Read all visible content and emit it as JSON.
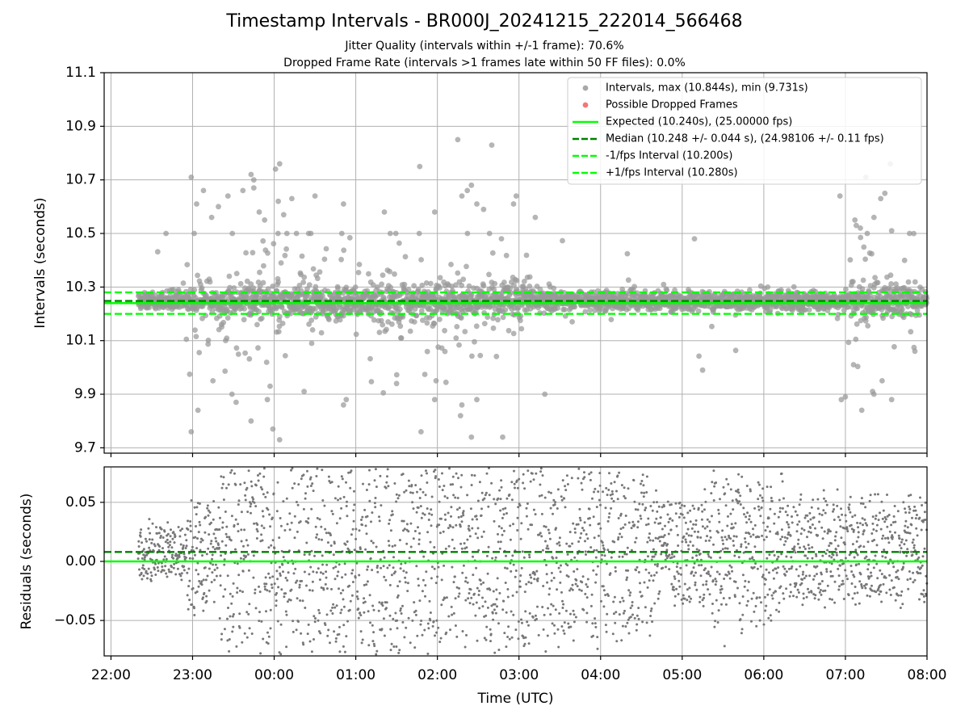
{
  "title": "Timestamp Intervals - BR000J_20241215_222014_566468",
  "subtitle_lines": [
    "Jitter Quality (intervals within +/-1 frame): 70.6%",
    "Dropped Frame Rate (intervals >1 frames late within 50 FF files): 0.0%"
  ],
  "chart_data": [
    {
      "type": "scatter",
      "panel": "intervals",
      "ylabel": "Intervals (seconds)",
      "ylim": [
        9.68,
        11.1
      ],
      "yticks": [
        "9.7",
        "9.9",
        "10.1",
        "10.3",
        "10.5",
        "10.7",
        "10.9",
        "11.1"
      ],
      "ytick_values": [
        9.7,
        9.9,
        10.1,
        10.3,
        10.5,
        10.7,
        10.9,
        11.1
      ],
      "grid": true,
      "legend_position": "top-right",
      "series": [
        {
          "name": "Intervals, max (10.844s), min (9.731s)",
          "kind": "scatter",
          "color": "#999999",
          "max": 10.844,
          "min": 9.731,
          "center": 10.248
        },
        {
          "name": "Possible Dropped Frames",
          "kind": "scatter",
          "color": "#f06060",
          "points": []
        },
        {
          "name": "Expected (10.240s), (25.00000 fps)",
          "kind": "hline",
          "y": 10.24,
          "color": "#00ff00",
          "style": "solid"
        },
        {
          "name": "Median (10.248 +/- 0.044 s), (24.98106 +/- 0.11 fps)",
          "kind": "hline",
          "y": 10.248,
          "color": "#008000",
          "style": "dashed"
        },
        {
          "name": "-1/fps Interval (10.200s)",
          "kind": "hline",
          "y": 10.2,
          "color": "#00ff00",
          "style": "dashed"
        },
        {
          "name": "+1/fps Interval (10.280s)",
          "kind": "hline",
          "y": 10.28,
          "color": "#00ff00",
          "style": "dashed"
        }
      ],
      "outliers": [
        {
          "t": "22:59",
          "y": 10.71
        },
        {
          "t": "23:03",
          "y": 10.61
        },
        {
          "t": "23:08",
          "y": 10.66
        },
        {
          "t": "23:14",
          "y": 10.56
        },
        {
          "t": "23:19",
          "y": 10.6
        },
        {
          "t": "23:26",
          "y": 10.64
        },
        {
          "t": "23:37",
          "y": 10.66
        },
        {
          "t": "23:43",
          "y": 10.72
        },
        {
          "t": "23:45",
          "y": 10.7
        },
        {
          "t": "23:45",
          "y": 10.67
        },
        {
          "t": "23:49",
          "y": 10.58
        },
        {
          "t": "23:53",
          "y": 10.55
        },
        {
          "t": "00:01",
          "y": 10.74
        },
        {
          "t": "00:04",
          "y": 10.76
        },
        {
          "t": "00:03",
          "y": 10.62
        },
        {
          "t": "00:07",
          "y": 10.57
        },
        {
          "t": "00:13",
          "y": 10.63
        },
        {
          "t": "00:30",
          "y": 10.64
        },
        {
          "t": "00:51",
          "y": 10.61
        },
        {
          "t": "01:21",
          "y": 10.58
        },
        {
          "t": "01:47",
          "y": 10.75
        },
        {
          "t": "01:58",
          "y": 10.58
        },
        {
          "t": "02:15",
          "y": 10.85
        },
        {
          "t": "02:18",
          "y": 10.64
        },
        {
          "t": "02:22",
          "y": 10.66
        },
        {
          "t": "02:25",
          "y": 10.68
        },
        {
          "t": "02:29",
          "y": 10.61
        },
        {
          "t": "02:34",
          "y": 10.59
        },
        {
          "t": "02:40",
          "y": 10.83
        },
        {
          "t": "02:58",
          "y": 10.64
        },
        {
          "t": "02:56",
          "y": 10.61
        },
        {
          "t": "03:12",
          "y": 10.56
        },
        {
          "t": "07:07",
          "y": 10.55
        },
        {
          "t": "07:08",
          "y": 10.53
        },
        {
          "t": "07:11",
          "y": 10.52
        },
        {
          "t": "07:15",
          "y": 10.71
        },
        {
          "t": "07:21",
          "y": 10.56
        },
        {
          "t": "07:26",
          "y": 10.63
        },
        {
          "t": "07:29",
          "y": 10.65
        },
        {
          "t": "07:33",
          "y": 10.76
        },
        {
          "t": "07:34",
          "y": 10.51
        },
        {
          "t": "06:56",
          "y": 10.64
        },
        {
          "t": "05:09",
          "y": 10.48
        },
        {
          "t": "22:59",
          "y": 9.76
        },
        {
          "t": "23:04",
          "y": 9.84
        },
        {
          "t": "23:15",
          "y": 9.95
        },
        {
          "t": "23:29",
          "y": 9.9
        },
        {
          "t": "23:32",
          "y": 9.87
        },
        {
          "t": "23:43",
          "y": 9.8
        },
        {
          "t": "23:55",
          "y": 9.88
        },
        {
          "t": "23:57",
          "y": 9.93
        },
        {
          "t": "23:59",
          "y": 9.77
        },
        {
          "t": "00:04",
          "y": 9.73
        },
        {
          "t": "00:22",
          "y": 9.91
        },
        {
          "t": "00:53",
          "y": 9.88
        },
        {
          "t": "00:51",
          "y": 9.86
        },
        {
          "t": "01:30",
          "y": 9.94
        },
        {
          "t": "01:48",
          "y": 9.76
        },
        {
          "t": "01:59",
          "y": 9.95
        },
        {
          "t": "01:58",
          "y": 9.88
        },
        {
          "t": "02:17",
          "y": 9.82
        },
        {
          "t": "02:18",
          "y": 9.86
        },
        {
          "t": "02:25",
          "y": 9.74
        },
        {
          "t": "02:29",
          "y": 9.88
        },
        {
          "t": "02:48",
          "y": 9.74
        },
        {
          "t": "03:19",
          "y": 9.9
        },
        {
          "t": "05:15",
          "y": 9.99
        },
        {
          "t": "06:57",
          "y": 9.88
        },
        {
          "t": "07:00",
          "y": 9.89
        },
        {
          "t": "07:06",
          "y": 10.01
        },
        {
          "t": "07:12",
          "y": 9.84
        },
        {
          "t": "07:20",
          "y": 9.91
        },
        {
          "t": "07:21",
          "y": 9.9
        },
        {
          "t": "07:27",
          "y": 9.95
        },
        {
          "t": "07:34",
          "y": 9.88
        }
      ]
    },
    {
      "type": "scatter",
      "panel": "residuals",
      "xlabel": "Time (UTC)",
      "ylabel": "Residuals (seconds)",
      "ylim": [
        -0.08,
        0.08
      ],
      "yticks": [
        "−0.05",
        "0.00",
        "0.05"
      ],
      "ytick_values": [
        -0.05,
        0.0,
        0.05
      ],
      "grid": true,
      "series": [
        {
          "name": "Residuals",
          "kind": "scatter",
          "color": "#777777"
        },
        {
          "name": "Expected",
          "kind": "hline",
          "y": 0.0,
          "color": "#00ff00",
          "style": "solid"
        },
        {
          "name": "Median",
          "kind": "hline",
          "y": 0.008,
          "color": "#008000",
          "style": "dashed"
        }
      ]
    }
  ],
  "x_axis": {
    "label": "Time (UTC)",
    "ticks": [
      "22:00",
      "23:00",
      "00:00",
      "01:00",
      "02:00",
      "03:00",
      "04:00",
      "05:00",
      "06:00",
      "07:00",
      "08:00"
    ],
    "tick_values": [
      "2024-12-15 22:00",
      "2024-12-15 23:00",
      "2024-12-16 00:00",
      "2024-12-16 01:00",
      "2024-12-16 02:00",
      "2024-12-16 03:00",
      "2024-12-16 04:00",
      "2024-12-16 05:00",
      "2024-12-16 06:00",
      "2024-12-16 07:00",
      "2024-12-16 08:00"
    ],
    "range": [
      "2024-12-15 21:55",
      "2024-12-16 08:00"
    ],
    "data_range": [
      "2024-12-15 22:20",
      "2024-12-16 08:00"
    ]
  }
}
